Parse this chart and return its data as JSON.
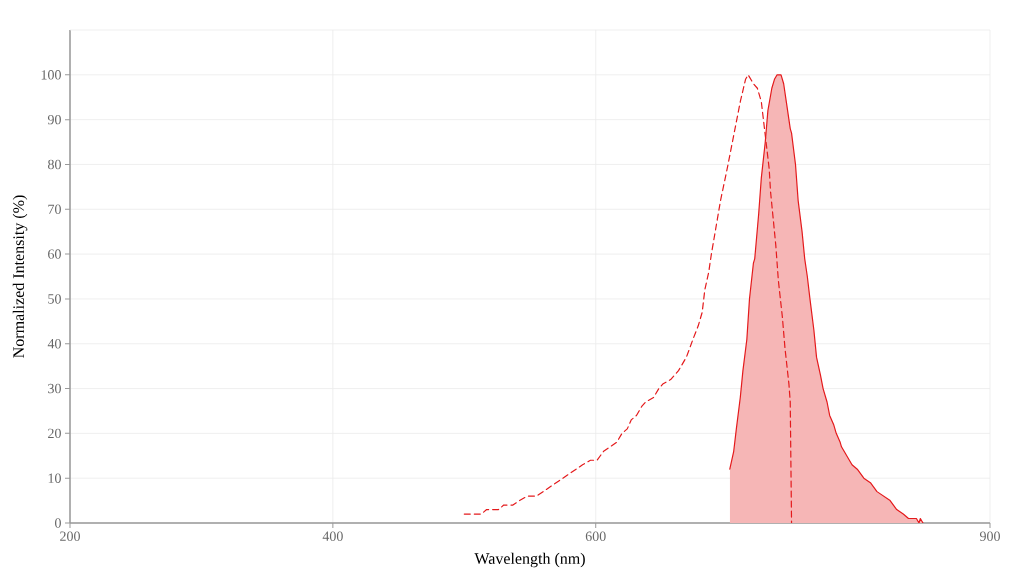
{
  "chart_data": {
    "type": "line",
    "xlabel": "Wavelength (nm)",
    "ylabel": "Normalized Intensity (%)",
    "xlim": [
      200,
      900
    ],
    "ylim": [
      0,
      110
    ],
    "xticks": [
      200,
      400,
      600,
      900
    ],
    "yticks": [
      0,
      10,
      20,
      30,
      40,
      50,
      60,
      70,
      80,
      90,
      100
    ],
    "grid": true,
    "series": [
      {
        "line_style": "dashed",
        "color": "#e41a1c",
        "x": [
          500,
          513,
          517,
          526,
          530,
          537,
          542,
          548,
          555,
          560,
          565,
          570,
          575,
          580,
          585,
          590,
          596,
          601,
          606,
          611,
          616,
          620,
          624,
          627,
          631,
          635,
          638,
          644,
          648,
          651,
          657,
          663,
          669,
          674,
          678,
          681,
          683,
          686,
          688,
          695,
          700,
          706,
          710,
          714,
          716,
          720,
          723,
          726,
          728,
          730,
          732,
          733,
          735,
          737,
          739,
          742,
          744,
          747,
          748,
          749
        ],
        "values": [
          2,
          2,
          3,
          3,
          4,
          4,
          5,
          6,
          6,
          7,
          8,
          9,
          10,
          11,
          12,
          13,
          14,
          14,
          16,
          17,
          18,
          20,
          21,
          23,
          24,
          26,
          27,
          28,
          30,
          31,
          32,
          34,
          37,
          41,
          44,
          47,
          52,
          56,
          60,
          72,
          79,
          88,
          94,
          99,
          100,
          98,
          97,
          94,
          89,
          84,
          79,
          74,
          68,
          62,
          54,
          46,
          39,
          31,
          27,
          0
        ]
      },
      {
        "type": "area",
        "line_style": "solid",
        "color": "#e41a1c",
        "x": [
          702,
          705,
          707,
          710,
          712,
          715,
          717,
          720,
          721,
          724,
          726,
          729,
          731,
          734,
          736,
          738,
          741,
          743,
          745,
          748,
          749,
          752,
          754,
          757,
          759,
          761,
          763,
          766,
          768,
          771,
          773,
          776,
          778,
          781,
          783,
          786,
          787,
          791,
          795,
          799,
          804,
          809,
          814,
          819,
          824,
          829,
          834,
          838,
          844,
          846,
          847,
          849
        ],
        "values": [
          12,
          16,
          21,
          28,
          34,
          41,
          50,
          58,
          59,
          69,
          77,
          85,
          92,
          97,
          99,
          100,
          100,
          98,
          94,
          88,
          87,
          80,
          72,
          65,
          59,
          55,
          50,
          43,
          37,
          33,
          30,
          27,
          24,
          22,
          20,
          18,
          17,
          15,
          13,
          12,
          10,
          9,
          7,
          6,
          5,
          3,
          2,
          1,
          1,
          0,
          1,
          0
        ]
      }
    ]
  }
}
